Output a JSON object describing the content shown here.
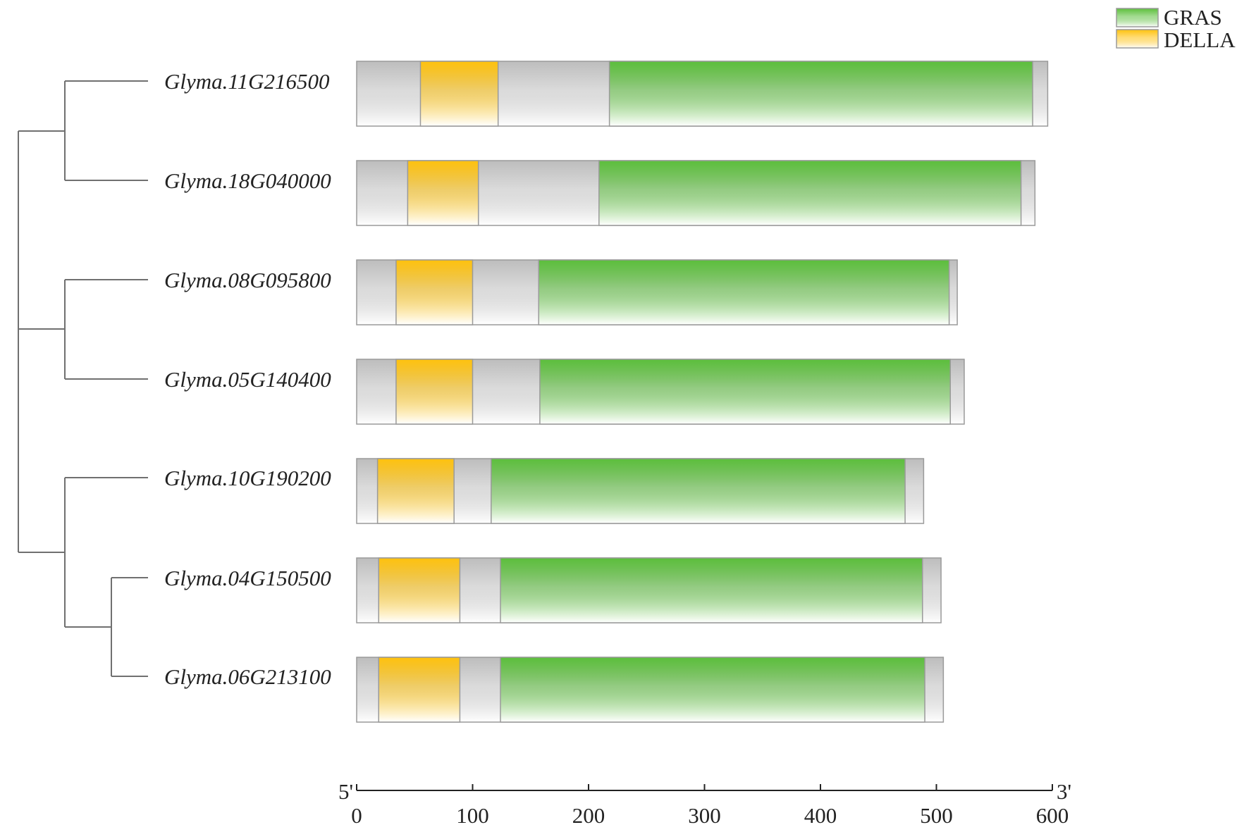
{
  "legend": [
    {
      "label": "GRAS",
      "color": "#5cbf3c"
    },
    {
      "label": "DELLA",
      "color": "#ffc20e"
    }
  ],
  "colors": {
    "gras": "#5cbf3c",
    "della": "#ffc20e",
    "backbone": "#bdbdbd",
    "outline": "#9a9a9a",
    "tree": "#707070",
    "axis": "#222222"
  },
  "axis": {
    "min": 0,
    "max": 600,
    "ticks": [
      "0",
      "100",
      "200",
      "300",
      "400",
      "500",
      "600"
    ],
    "left_end_label": "5'",
    "right_end_label": "3'"
  },
  "tree": {
    "leaves": [
      "Glyma.11G216500",
      "Glyma.18G040000",
      "Glyma.08G095800",
      "Glyma.05G140400",
      "Glyma.10G190200",
      "Glyma.04G150500",
      "Glyma.06G213100"
    ]
  },
  "chart_data": {
    "type": "diagram",
    "xlim": [
      0,
      600
    ],
    "proteins": [
      {
        "name": "Glyma.11G216500",
        "length": 596,
        "domains": [
          {
            "type": "DELLA",
            "start": 55,
            "end": 122
          },
          {
            "type": "GRAS",
            "start": 218,
            "end": 583
          }
        ]
      },
      {
        "name": "Glyma.18G040000",
        "length": 585,
        "domains": [
          {
            "type": "DELLA",
            "start": 44,
            "end": 105
          },
          {
            "type": "GRAS",
            "start": 209,
            "end": 573
          }
        ]
      },
      {
        "name": "Glyma.08G095800",
        "length": 518,
        "domains": [
          {
            "type": "DELLA",
            "start": 34,
            "end": 100
          },
          {
            "type": "GRAS",
            "start": 157,
            "end": 511
          }
        ]
      },
      {
        "name": "Glyma.05G140400",
        "length": 524,
        "domains": [
          {
            "type": "DELLA",
            "start": 34,
            "end": 100
          },
          {
            "type": "GRAS",
            "start": 158,
            "end": 512
          }
        ]
      },
      {
        "name": "Glyma.10G190200",
        "length": 489,
        "domains": [
          {
            "type": "DELLA",
            "start": 18,
            "end": 84
          },
          {
            "type": "GRAS",
            "start": 116,
            "end": 473
          }
        ]
      },
      {
        "name": "Glyma.04G150500",
        "length": 504,
        "domains": [
          {
            "type": "DELLA",
            "start": 19,
            "end": 89
          },
          {
            "type": "GRAS",
            "start": 124,
            "end": 488
          }
        ]
      },
      {
        "name": "Glyma.06G213100",
        "length": 506,
        "domains": [
          {
            "type": "DELLA",
            "start": 19,
            "end": 89
          },
          {
            "type": "GRAS",
            "start": 124,
            "end": 490
          }
        ]
      }
    ]
  }
}
